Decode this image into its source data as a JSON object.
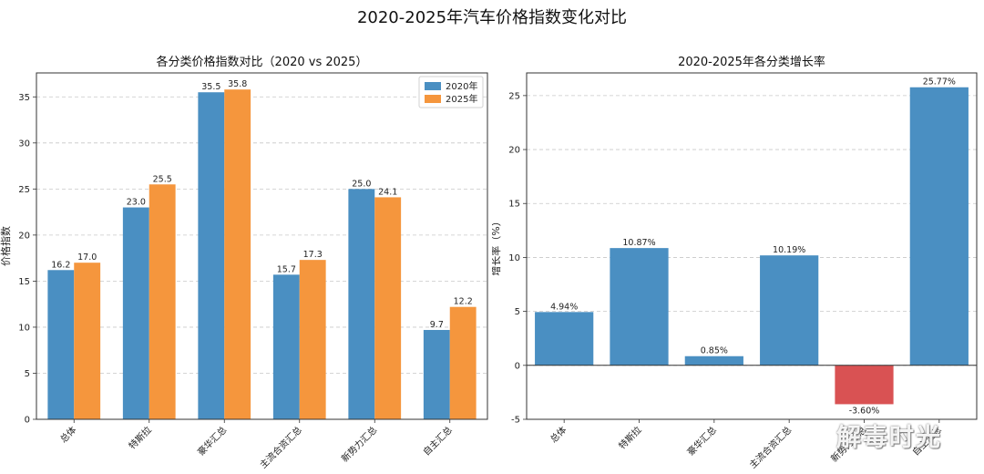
{
  "figure": {
    "title": "2020-2025年汽车价格指数变化对比",
    "watermark": "解毒时光"
  },
  "chart_data": [
    {
      "type": "bar",
      "title": "各分类价格指数对比（2020 vs 2025）",
      "xlabel": "",
      "ylabel": "价格指数",
      "categories": [
        "总体",
        "特斯拉",
        "豪华汇总",
        "主流合资汇总",
        "新势力汇总",
        "自主汇总"
      ],
      "series": [
        {
          "name": "2020年",
          "color": "#4a8fc2",
          "values": [
            16.2,
            23.0,
            35.5,
            15.7,
            25.0,
            9.7
          ],
          "labels": [
            "16.2",
            "23.0",
            "35.5",
            "15.7",
            "25.0",
            "9.7"
          ]
        },
        {
          "name": "2025年",
          "color": "#f5963d",
          "values": [
            17.0,
            25.5,
            35.8,
            17.3,
            24.1,
            12.2
          ],
          "labels": [
            "17.0",
            "25.5",
            "35.8",
            "17.3",
            "24.1",
            "12.2"
          ]
        }
      ],
      "ylim": [
        0,
        37.6
      ],
      "yticks": [
        0,
        5,
        10,
        15,
        20,
        25,
        30,
        35
      ],
      "grid": "y-dashed",
      "legend": "top-right"
    },
    {
      "type": "bar",
      "title": "2020-2025年各分类增长率",
      "xlabel": "",
      "ylabel": "增长率（%）",
      "categories": [
        "总体",
        "特斯拉",
        "豪华汇总",
        "主流合资汇总",
        "新势力汇总",
        "自主汇总"
      ],
      "values": [
        4.94,
        10.87,
        0.85,
        10.19,
        -3.6,
        25.77
      ],
      "labels": [
        "4.94%",
        "10.87%",
        "0.85%",
        "10.19%",
        "-3.60%",
        "25.77%"
      ],
      "positive_color": "#4a8fc2",
      "negative_color": "#d95253",
      "ylim": [
        -5,
        27.1
      ],
      "yticks": [
        -5,
        0,
        5,
        10,
        15,
        20,
        25
      ],
      "grid": "y-dashed",
      "zero_line": true
    }
  ]
}
